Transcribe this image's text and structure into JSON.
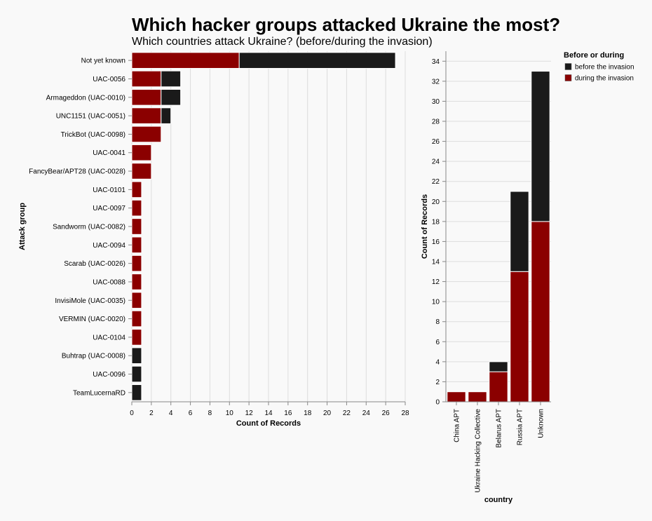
{
  "title": "Which hacker groups attacked Ukraine the most?",
  "subtitle": "Which countries attack Ukraine? (before/during the invasion)",
  "colors": {
    "before": "#1a1a1a",
    "during": "#8b0000",
    "grid": "#dddddd",
    "axis": "#888888"
  },
  "legend": {
    "title": "Before or during",
    "items": [
      {
        "label": "before the invasion",
        "key": "before"
      },
      {
        "label": "during the invasion",
        "key": "during"
      }
    ]
  },
  "chart_data": [
    {
      "type": "bar",
      "orientation": "horizontal",
      "stacked": true,
      "ylabel": "Attack group",
      "xlabel": "Count of Records",
      "xlim": [
        0,
        28
      ],
      "xticks": [
        0,
        2,
        4,
        6,
        8,
        10,
        12,
        14,
        16,
        18,
        20,
        22,
        24,
        26,
        28
      ],
      "grid": true,
      "categories": [
        "Not yet known",
        "UAC-0056",
        "Armageddon (UAC-0010)",
        "UNC1151 (UAC-0051)",
        "TrickBot (UAC-0098)",
        "UAC-0041",
        "FancyBear/APT28 (UAC-0028)",
        "UAC-0101",
        "UAC-0097",
        "Sandworm (UAC-0082)",
        "UAC-0094",
        "Scarab (UAC-0026)",
        "UAC-0088",
        "InvisiMole (UAC-0035)",
        "VERMIN (UAC-0020)",
        "UAC-0104",
        "Buhtrap (UAC-0008)",
        "UAC-0096",
        "TeamLucernaRD"
      ],
      "series": [
        {
          "name": "during the invasion",
          "values": [
            11,
            3,
            3,
            3,
            3,
            2,
            2,
            1,
            1,
            1,
            1,
            1,
            1,
            1,
            1,
            1,
            0,
            0,
            0
          ]
        },
        {
          "name": "before the invasion",
          "values": [
            16,
            2,
            2,
            1,
            0,
            0,
            0,
            0,
            0,
            0,
            0,
            0,
            0,
            0,
            0,
            0,
            1,
            1,
            1
          ]
        }
      ]
    },
    {
      "type": "bar",
      "orientation": "vertical",
      "stacked": true,
      "xlabel": "country",
      "ylabel": "Count of Records",
      "ylim": [
        0,
        35
      ],
      "yticks": [
        0,
        2,
        4,
        6,
        8,
        10,
        12,
        14,
        16,
        18,
        20,
        22,
        24,
        26,
        28,
        30,
        32,
        34
      ],
      "grid": true,
      "legend_position": "right",
      "categories": [
        "China APT",
        "Ukraine Hacking Collective",
        "Belarus APT",
        "Russia APT",
        "Unknown"
      ],
      "series": [
        {
          "name": "during the invasion",
          "values": [
            1,
            1,
            3,
            13,
            18
          ]
        },
        {
          "name": "before the invasion",
          "values": [
            0,
            0,
            1,
            8,
            15
          ]
        }
      ]
    }
  ]
}
